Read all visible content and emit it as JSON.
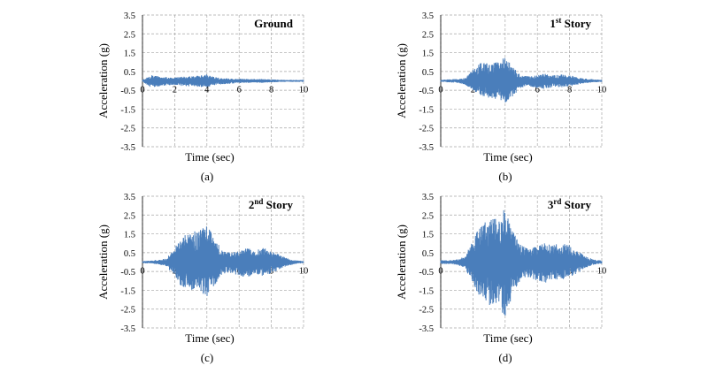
{
  "figure": {
    "accent_color": "#4a7ebb",
    "grid_color": "#a6a6a6",
    "panels": [
      {
        "id": "a",
        "caption": "(a)",
        "title_main": "Ground",
        "title_sup": "",
        "title_rest": ""
      },
      {
        "id": "b",
        "caption": "(b)",
        "title_main": "1",
        "title_sup": "st",
        "title_rest": " Story"
      },
      {
        "id": "c",
        "caption": "(c)",
        "title_main": "2",
        "title_sup": "nd",
        "title_rest": " Story"
      },
      {
        "id": "d",
        "caption": "(d)",
        "title_main": "3",
        "title_sup": "rd",
        "title_rest": " Story"
      }
    ]
  },
  "chart_data": [
    {
      "type": "line",
      "title": "Ground",
      "xlabel": "Time (sec)",
      "ylabel": "Acceleration (g)",
      "xlim": [
        0,
        10
      ],
      "ylim": [
        -3.5,
        3.5
      ],
      "xticks": [
        "0",
        "2",
        "4",
        "6",
        "8",
        "10"
      ],
      "yticks": [
        "3.5",
        "2.5",
        "1.5",
        "0.5",
        "-0.5",
        "-1.5",
        "-2.5",
        "-3.5"
      ],
      "grid": true,
      "series": [
        {
          "color": "#4a7ebb",
          "x": [
            0,
            0.5,
            1.0,
            1.5,
            2.0,
            2.5,
            3.0,
            3.5,
            4.0,
            4.5,
            5.0,
            5.5,
            6.0,
            6.5,
            7.0,
            7.5,
            8.0,
            8.5,
            9.0,
            9.5,
            10.0
          ],
          "envelope_max": [
            0.05,
            0.3,
            0.25,
            0.2,
            0.2,
            0.22,
            0.25,
            0.3,
            0.35,
            0.2,
            0.15,
            0.12,
            0.12,
            0.1,
            0.1,
            0.1,
            0.08,
            0.06,
            0.05,
            0.05,
            0.05
          ],
          "envelope_min": [
            -0.05,
            -0.35,
            -0.3,
            -0.25,
            -0.22,
            -0.3,
            -0.28,
            -0.32,
            -0.35,
            -0.22,
            -0.18,
            -0.15,
            -0.12,
            -0.1,
            -0.1,
            -0.1,
            -0.08,
            -0.06,
            -0.05,
            -0.05,
            -0.05
          ]
        }
      ]
    },
    {
      "type": "line",
      "title": "1st Story",
      "xlabel": "Time (sec)",
      "ylabel": "Acceleration (g)",
      "xlim": [
        0,
        10
      ],
      "ylim": [
        -3.5,
        3.5
      ],
      "xticks": [
        "0",
        "2",
        "4",
        "6",
        "8",
        "10"
      ],
      "yticks": [
        "3.5",
        "2.5",
        "1.5",
        "0.5",
        "-0.5",
        "-1.5",
        "-2.5",
        "-3.5"
      ],
      "grid": true,
      "series": [
        {
          "color": "#4a7ebb",
          "x": [
            0,
            0.5,
            1.0,
            1.5,
            2.0,
            2.5,
            3.0,
            3.5,
            4.0,
            4.5,
            5.0,
            5.5,
            6.0,
            6.5,
            7.0,
            7.5,
            8.0,
            8.5,
            9.0,
            9.5,
            10.0
          ],
          "envelope_max": [
            0.05,
            0.08,
            0.1,
            0.15,
            0.6,
            1.0,
            0.9,
            1.0,
            1.3,
            0.7,
            0.3,
            0.25,
            0.3,
            0.4,
            0.3,
            0.35,
            0.3,
            0.2,
            0.12,
            0.08,
            0.05
          ],
          "envelope_min": [
            -0.05,
            -0.08,
            -0.1,
            -0.2,
            -0.5,
            -0.8,
            -0.9,
            -1.0,
            -1.2,
            -0.8,
            -0.35,
            -0.3,
            -0.4,
            -0.45,
            -0.3,
            -0.35,
            -0.3,
            -0.2,
            -0.12,
            -0.08,
            -0.05
          ]
        }
      ]
    },
    {
      "type": "line",
      "title": "2nd Story",
      "xlabel": "Time (sec)",
      "ylabel": "Acceleration (g)",
      "xlim": [
        0,
        10
      ],
      "ylim": [
        -3.5,
        3.5
      ],
      "xticks": [
        "0",
        "2",
        "4",
        "6",
        "8",
        "10"
      ],
      "yticks": [
        "3.5",
        "2.5",
        "1.5",
        "0.5",
        "-0.5",
        "-1.5",
        "-2.5",
        "-3.5"
      ],
      "grid": true,
      "series": [
        {
          "color": "#4a7ebb",
          "x": [
            0,
            0.5,
            1.0,
            1.5,
            2.0,
            2.5,
            3.0,
            3.5,
            4.0,
            4.5,
            5.0,
            5.5,
            6.0,
            6.5,
            7.0,
            7.5,
            8.0,
            8.5,
            9.0,
            9.5,
            10.0
          ],
          "envelope_max": [
            0.05,
            0.08,
            0.12,
            0.2,
            0.8,
            1.5,
            1.6,
            1.7,
            2.1,
            1.2,
            0.6,
            0.5,
            0.6,
            0.8,
            0.6,
            0.8,
            0.6,
            0.4,
            0.2,
            0.1,
            0.05
          ],
          "envelope_min": [
            -0.05,
            -0.08,
            -0.12,
            -0.25,
            -0.8,
            -1.4,
            -1.5,
            -1.5,
            -1.9,
            -1.2,
            -0.6,
            -0.6,
            -0.7,
            -0.85,
            -0.6,
            -0.75,
            -0.6,
            -0.4,
            -0.2,
            -0.1,
            -0.05
          ]
        }
      ]
    },
    {
      "type": "line",
      "title": "3rd Story",
      "xlabel": "Time (sec)",
      "ylabel": "Acceleration (g)",
      "xlim": [
        0,
        10
      ],
      "ylim": [
        -3.5,
        3.5
      ],
      "xticks": [
        "0",
        "2",
        "4",
        "6",
        "8",
        "10"
      ],
      "yticks": [
        "3.5",
        "2.5",
        "1.5",
        "0.5",
        "-0.5",
        "-1.5",
        "-2.5",
        "-3.5"
      ],
      "grid": true,
      "series": [
        {
          "color": "#4a7ebb",
          "x": [
            0,
            0.5,
            1.0,
            1.5,
            2.0,
            2.5,
            3.0,
            3.5,
            4.0,
            4.5,
            5.0,
            5.5,
            6.0,
            6.5,
            7.0,
            7.5,
            8.0,
            8.5,
            9.0,
            9.5,
            10.0
          ],
          "envelope_max": [
            0.1,
            0.1,
            0.15,
            0.3,
            1.2,
            2.0,
            2.3,
            2.4,
            3.0,
            1.6,
            0.9,
            0.7,
            0.9,
            1.1,
            0.9,
            1.1,
            0.9,
            0.6,
            0.3,
            0.15,
            0.08
          ],
          "envelope_min": [
            -0.1,
            -0.1,
            -0.15,
            -0.3,
            -1.2,
            -2.0,
            -2.3,
            -2.4,
            -3.0,
            -1.6,
            -0.9,
            -0.8,
            -1.0,
            -1.1,
            -0.9,
            -1.0,
            -0.8,
            -0.6,
            -0.3,
            -0.15,
            -0.08
          ]
        }
      ]
    }
  ]
}
